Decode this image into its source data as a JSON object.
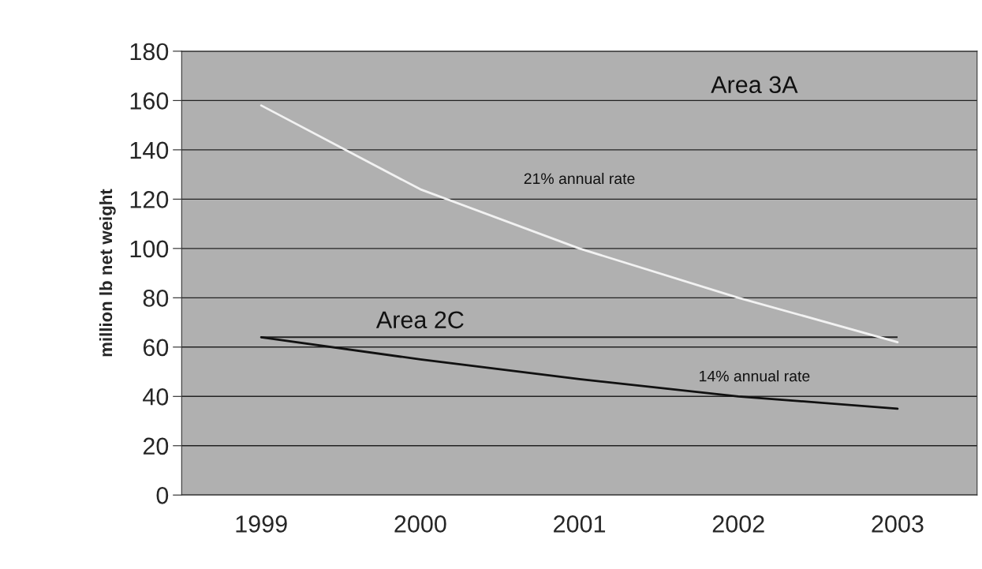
{
  "chart_data": {
    "type": "line",
    "ylabel": "million lb net weight",
    "categories": [
      "1999",
      "2000",
      "2001",
      "2002",
      "2003"
    ],
    "series": [
      {
        "color": "#f2f2f2",
        "values": [
          158,
          124,
          100,
          80,
          62
        ]
      },
      {
        "color": "#111111",
        "values": [
          64,
          55,
          47,
          40,
          35
        ]
      }
    ],
    "ref_lines": [
      {
        "axis": "y",
        "value": 64,
        "color": "#222222",
        "line_style": "solid"
      }
    ],
    "annotations": [
      "Area 3A",
      "21% annual rate",
      "Area 2C",
      "14% annual rate"
    ],
    "ylim": [
      0,
      180
    ],
    "yticks": [
      0,
      20,
      40,
      60,
      80,
      100,
      120,
      140,
      160,
      180
    ],
    "grid": "y",
    "legend": false,
    "marker": "none",
    "line_style": "solid"
  }
}
